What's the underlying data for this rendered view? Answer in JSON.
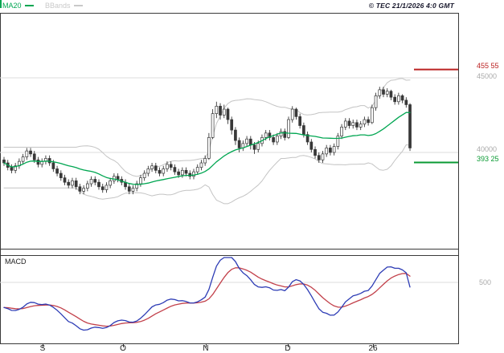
{
  "header": {
    "legend": [
      {
        "label": "MA20",
        "color": "#00a651"
      },
      {
        "label": "BBands",
        "color": "#c9c9c9"
      }
    ],
    "copyright": "© TEC 21/1/2026 4:0 GMT"
  },
  "price_axis": {
    "resistance": {
      "text": "455 55",
      "value": 45555,
      "color": "#bb2222"
    },
    "grid_upper": {
      "text": "45000",
      "value": 45000
    },
    "grid_lower": {
      "text": "40000",
      "value": 40000
    },
    "support": {
      "text": "393 25",
      "value": 39325,
      "color": "#0a9a33"
    }
  },
  "macd_panel": {
    "label": "MACD",
    "grid": {
      "text": "500",
      "value": 500
    }
  },
  "x_axis": {
    "labels": [
      "S",
      "O",
      "N",
      "D",
      "26"
    ]
  },
  "chart_data": {
    "type": "candlestick",
    "title": "",
    "legend_position": "top-left",
    "x_tick_labels": [
      "S",
      "O",
      "N",
      "D",
      "26"
    ],
    "panels": [
      {
        "name": "price",
        "type": "candlestick",
        "ylim": [
          33500,
          49400
        ],
        "gridlines": [
          45000,
          40000
        ],
        "levels": [
          {
            "value": 45555,
            "color": "#bb2222"
          },
          {
            "value": 39325,
            "color": "#0a9a33"
          }
        ],
        "overlays": [
          {
            "name": "MA20",
            "color": "#00a651"
          },
          {
            "name": "BollingerBands",
            "period": 20,
            "stddev": 2,
            "color": "#c4c4c4"
          }
        ],
        "candles": [
          [
            39500,
            39700,
            39100,
            39300
          ],
          [
            39300,
            39500,
            38800,
            39000
          ],
          [
            39000,
            39200,
            38600,
            38800
          ],
          [
            38800,
            39300,
            38600,
            39100
          ],
          [
            39100,
            39600,
            38900,
            39400
          ],
          [
            39400,
            39900,
            39200,
            39700
          ],
          [
            39700,
            40300,
            39500,
            40100
          ],
          [
            40100,
            40300,
            39700,
            39900
          ],
          [
            39900,
            40100,
            39300,
            39500
          ],
          [
            39500,
            39700,
            39000,
            39200
          ],
          [
            39200,
            39600,
            39000,
            39400
          ],
          [
            39400,
            39800,
            39200,
            39600
          ],
          [
            39600,
            39800,
            39100,
            39300
          ],
          [
            39300,
            39500,
            38700,
            38900
          ],
          [
            38900,
            39100,
            38400,
            38600
          ],
          [
            38600,
            38800,
            38100,
            38300
          ],
          [
            38300,
            38500,
            37800,
            38000
          ],
          [
            38000,
            38200,
            37600,
            37800
          ],
          [
            37800,
            38300,
            37600,
            38100
          ],
          [
            38100,
            38300,
            37500,
            37700
          ],
          [
            37700,
            37900,
            37200,
            37400
          ],
          [
            37400,
            37800,
            37200,
            37600
          ],
          [
            37600,
            38100,
            37400,
            37900
          ],
          [
            37900,
            38400,
            37700,
            38200
          ],
          [
            38200,
            38400,
            37800,
            38000
          ],
          [
            38000,
            38200,
            37500,
            37700
          ],
          [
            37700,
            37900,
            37300,
            37500
          ],
          [
            37500,
            38000,
            37300,
            37800
          ],
          [
            37800,
            38300,
            37600,
            38100
          ],
          [
            38100,
            38600,
            37900,
            38400
          ],
          [
            38400,
            38600,
            38000,
            38200
          ],
          [
            38200,
            38400,
            37800,
            38000
          ],
          [
            38000,
            38200,
            37500,
            37700
          ],
          [
            37700,
            37900,
            37200,
            37400
          ],
          [
            37400,
            37800,
            37200,
            37600
          ],
          [
            37600,
            38100,
            37400,
            37900
          ],
          [
            37900,
            38500,
            37700,
            38300
          ],
          [
            38300,
            38800,
            38100,
            38600
          ],
          [
            38600,
            39100,
            38400,
            38900
          ],
          [
            38900,
            39300,
            38700,
            39100
          ],
          [
            39100,
            39300,
            38600,
            38800
          ],
          [
            38800,
            39000,
            38400,
            38600
          ],
          [
            38600,
            39100,
            38400,
            38900
          ],
          [
            38900,
            39400,
            38700,
            39200
          ],
          [
            39200,
            39400,
            38800,
            39000
          ],
          [
            39000,
            39200,
            38500,
            38700
          ],
          [
            38700,
            38900,
            38300,
            38500
          ],
          [
            38500,
            39000,
            38300,
            38800
          ],
          [
            38800,
            39000,
            38400,
            38600
          ],
          [
            38600,
            38800,
            38200,
            38400
          ],
          [
            38400,
            38900,
            38200,
            38700
          ],
          [
            38700,
            39200,
            38500,
            39000
          ],
          [
            39000,
            39500,
            38800,
            39300
          ],
          [
            39300,
            39800,
            39100,
            39600
          ],
          [
            39600,
            41300,
            39500,
            41000
          ],
          [
            41000,
            42900,
            40900,
            42600
          ],
          [
            42600,
            43400,
            42300,
            43100
          ],
          [
            43100,
            43300,
            42200,
            42500
          ],
          [
            42500,
            43200,
            42300,
            42900
          ],
          [
            42900,
            43000,
            41900,
            42200
          ],
          [
            42200,
            42400,
            41200,
            41500
          ],
          [
            41500,
            41700,
            40500,
            40800
          ],
          [
            40800,
            41000,
            40000,
            40300
          ],
          [
            40300,
            40800,
            40100,
            40600
          ],
          [
            40600,
            41100,
            40400,
            40900
          ],
          [
            40900,
            41100,
            40200,
            40500
          ],
          [
            40500,
            40700,
            39900,
            40200
          ],
          [
            40200,
            40800,
            40000,
            40600
          ],
          [
            40600,
            41200,
            40400,
            41000
          ],
          [
            41000,
            41500,
            40800,
            41300
          ],
          [
            41300,
            41500,
            40800,
            41000
          ],
          [
            41000,
            41200,
            40500,
            40700
          ],
          [
            40700,
            41300,
            40500,
            41100
          ],
          [
            41100,
            41600,
            40900,
            41400
          ],
          [
            41400,
            41600,
            40800,
            41000
          ],
          [
            41000,
            42400,
            40900,
            42200
          ],
          [
            42200,
            43100,
            42000,
            42900
          ],
          [
            42900,
            43000,
            42200,
            42400
          ],
          [
            42400,
            42600,
            41600,
            41800
          ],
          [
            41800,
            42000,
            41000,
            41200
          ],
          [
            41200,
            41400,
            40500,
            40700
          ],
          [
            40700,
            40900,
            40000,
            40200
          ],
          [
            40200,
            40400,
            39600,
            39800
          ],
          [
            39800,
            40000,
            39300,
            39500
          ],
          [
            39500,
            40100,
            39300,
            39900
          ],
          [
            39900,
            40500,
            39700,
            40300
          ],
          [
            40300,
            40500,
            39800,
            40000
          ],
          [
            40000,
            40600,
            39800,
            40400
          ],
          [
            40400,
            41300,
            40200,
            41100
          ],
          [
            41100,
            41900,
            40900,
            41700
          ],
          [
            41700,
            42300,
            41500,
            42100
          ],
          [
            42100,
            42300,
            41600,
            41800
          ],
          [
            41800,
            42200,
            41600,
            42000
          ],
          [
            42000,
            42200,
            41500,
            41700
          ],
          [
            41700,
            42100,
            41500,
            41900
          ],
          [
            41900,
            42400,
            41700,
            42200
          ],
          [
            42200,
            42400,
            41800,
            42000
          ],
          [
            42000,
            43200,
            41900,
            43000
          ],
          [
            43000,
            44000,
            42800,
            43800
          ],
          [
            43800,
            44400,
            43600,
            44200
          ],
          [
            44200,
            44400,
            43700,
            43900
          ],
          [
            43900,
            44300,
            43700,
            44100
          ],
          [
            44100,
            44200,
            43500,
            43700
          ],
          [
            43700,
            43900,
            43200,
            43400
          ],
          [
            43400,
            44000,
            43200,
            43800
          ],
          [
            43800,
            43900,
            43300,
            43500
          ],
          [
            43500,
            43700,
            43000,
            43200
          ],
          [
            43200,
            43300,
            40100,
            40300
          ]
        ]
      },
      {
        "name": "macd",
        "type": "line",
        "indicator": "MACD(12,26,9)",
        "gridlines": [
          500
        ],
        "series": [
          {
            "name": "MACD",
            "color": "#2d3cb5",
            "derive": "ema12-ema26 of closes"
          },
          {
            "name": "Signal",
            "color": "#c2404a",
            "derive": "ema9 of MACD"
          }
        ]
      }
    ]
  }
}
